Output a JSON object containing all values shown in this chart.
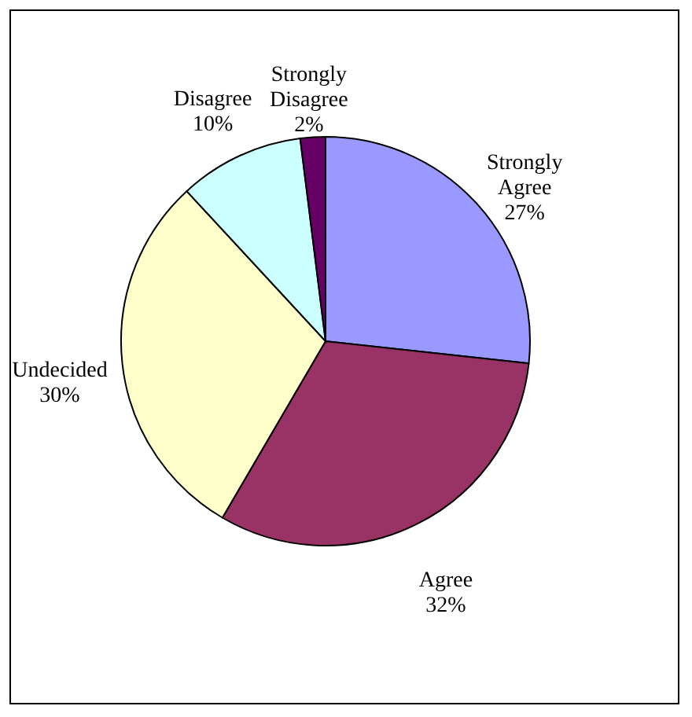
{
  "chart_data": {
    "type": "pie",
    "categories": [
      "Strongly Agree",
      "Agree",
      "Undecided",
      "Disagree",
      "Strongly Disagree"
    ],
    "values": [
      27,
      32,
      30,
      10,
      2
    ],
    "value_labels": [
      "27%",
      "32%",
      "30%",
      "10%",
      "2%"
    ],
    "colors": [
      "#9999ff",
      "#993366",
      "#ffffcc",
      "#ccffff",
      "#660066"
    ],
    "legend": false
  }
}
